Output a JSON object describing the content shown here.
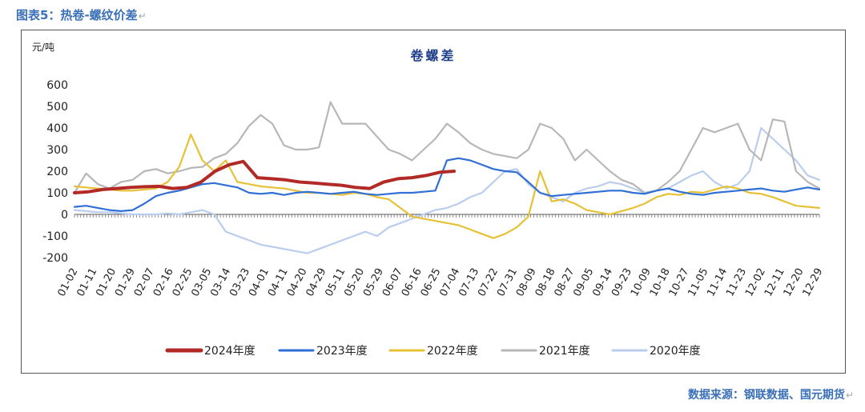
{
  "figure_title": "图表5：热卷-螺纹价差",
  "source_note": "数据来源：钢联数据、国元期货",
  "return_mark": "↵",
  "chart_data": {
    "type": "line",
    "title": "卷螺差",
    "unit_label": "元/吨",
    "ylim": [
      -200,
      600
    ],
    "yticks": [
      -200,
      -100,
      0,
      100,
      200,
      300,
      400,
      500,
      600
    ],
    "x_tick_labels": [
      "01-02",
      "01-11",
      "01-20",
      "01-29",
      "02-07",
      "02-16",
      "02-25",
      "03-05",
      "03-14",
      "03-23",
      "04-01",
      "04-11",
      "04-20",
      "04-29",
      "05-11",
      "05-20",
      "05-29",
      "06-07",
      "06-16",
      "06-25",
      "07-04",
      "07-13",
      "07-22",
      "07-31",
      "08-09",
      "08-18",
      "08-27",
      "09-05",
      "09-14",
      "09-23",
      "10-09",
      "10-18",
      "10-27",
      "11-05",
      "11-14",
      "11-23",
      "12-02",
      "12-11",
      "12-20",
      "12-29"
    ],
    "legend_position": "bottom",
    "series": [
      {
        "name": "2024年度",
        "color": "#b22a26",
        "width": 4,
        "values": [
          100,
          105,
          115,
          120,
          125,
          128,
          130,
          120,
          125,
          150,
          200,
          230,
          245,
          170,
          165,
          160,
          150,
          145,
          140,
          135,
          125,
          120,
          150,
          165,
          170,
          180,
          195,
          200
        ]
      },
      {
        "name": "2023年度",
        "color": "#2f6fd6",
        "width": 2.2,
        "values": [
          35,
          40,
          30,
          20,
          15,
          20,
          50,
          85,
          100,
          110,
          125,
          140,
          145,
          135,
          125,
          100,
          95,
          100,
          90,
          100,
          105,
          100,
          95,
          100,
          105,
          95,
          90,
          95,
          100,
          100,
          105,
          110,
          250,
          260,
          250,
          230,
          210,
          200,
          195,
          150,
          100,
          85,
          90,
          95,
          100,
          105,
          110,
          110,
          100,
          95,
          110,
          120,
          105,
          95,
          90,
          100,
          105,
          110,
          115,
          120,
          110,
          105,
          115,
          125,
          115
        ]
      },
      {
        "name": "2022年度",
        "color": "#e7c135",
        "width": 2.2,
        "values": [
          130,
          125,
          120,
          115,
          110,
          110,
          115,
          120,
          150,
          220,
          370,
          250,
          200,
          250,
          150,
          140,
          130,
          125,
          120,
          110,
          100,
          100,
          95,
          90,
          100,
          95,
          80,
          70,
          30,
          -10,
          -20,
          -30,
          -40,
          -50,
          -70,
          -90,
          -110,
          -90,
          -60,
          -10,
          200,
          60,
          70,
          50,
          20,
          10,
          0,
          15,
          30,
          50,
          80,
          95,
          90,
          105,
          100,
          115,
          130,
          120,
          100,
          95,
          80,
          60,
          40,
          35,
          30
        ]
      },
      {
        "name": "2021年度",
        "color": "#b7b7b7",
        "width": 2.2,
        "values": [
          100,
          190,
          140,
          120,
          150,
          160,
          200,
          210,
          190,
          200,
          215,
          220,
          260,
          280,
          330,
          410,
          460,
          420,
          320,
          300,
          300,
          310,
          520,
          420,
          420,
          420,
          360,
          300,
          280,
          250,
          300,
          350,
          420,
          380,
          330,
          300,
          280,
          270,
          260,
          300,
          420,
          400,
          350,
          250,
          300,
          250,
          200,
          160,
          140,
          100,
          110,
          150,
          200,
          300,
          400,
          380,
          400,
          420,
          300,
          250,
          440,
          430,
          200,
          150,
          120
        ]
      },
      {
        "name": "2020年度",
        "color": "#b9cdee",
        "width": 2.2,
        "values": [
          20,
          15,
          10,
          10,
          5,
          0,
          0,
          0,
          5,
          0,
          10,
          20,
          0,
          -80,
          -100,
          -120,
          -140,
          -150,
          -160,
          -170,
          -180,
          -160,
          -140,
          -120,
          -100,
          -80,
          -100,
          -60,
          -40,
          -20,
          0,
          20,
          30,
          50,
          80,
          100,
          150,
          200,
          210,
          140,
          100,
          80,
          60,
          100,
          120,
          130,
          150,
          140,
          120,
          100,
          110,
          120,
          150,
          180,
          200,
          150,
          120,
          140,
          200,
          400,
          350,
          300,
          250,
          180,
          160
        ]
      }
    ]
  }
}
